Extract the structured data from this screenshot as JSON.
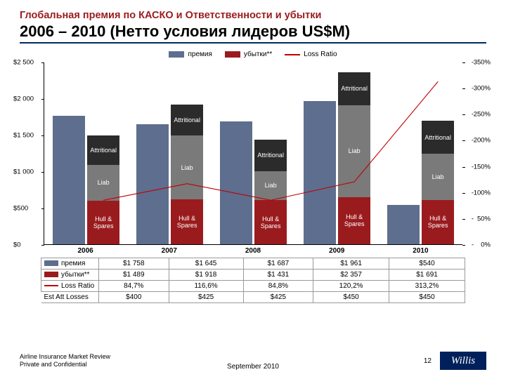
{
  "title": {
    "sub": "Глобальная премия по КАСКО и Ответственности и убытки",
    "main": "2006 – 2010 (Нетто условия лидеров US$M)",
    "sub_color": "#9a1b1e"
  },
  "legend": {
    "premium": "премия",
    "losses": "убытки**",
    "lossratio": "Loss Ratio"
  },
  "colors": {
    "premium": "#5e6e8e",
    "loss_hull": "#9a1b1e",
    "loss_liab": "#7a7a7a",
    "loss_attr": "#2b2b2b",
    "line": "#c00000",
    "title_bar": "#002b5c",
    "logo_bg": "#00205b"
  },
  "chart": {
    "ylim_left": [
      0,
      2500
    ],
    "ytick_left": 500,
    "ylim_right": [
      0,
      350
    ],
    "ytick_right": 50,
    "y_left_prefix": "$",
    "y_right_suffix": "%",
    "years": [
      "2006",
      "2007",
      "2008",
      "2009",
      "2010"
    ],
    "premium": [
      1758,
      1645,
      1687,
      1961,
      540
    ],
    "loss_total": [
      1489,
      1918,
      1431,
      2357,
      1691
    ],
    "loss_ratio": [
      84.7,
      116.6,
      84.8,
      120.2,
      313.2
    ],
    "loss_stack_labels": [
      "Hull &\nSpares",
      "Liab",
      "Attritional"
    ],
    "loss_stack": [
      [
        600,
        490,
        400
      ],
      [
        610,
        880,
        425
      ],
      [
        600,
        400,
        425
      ],
      [
        650,
        1260,
        450
      ],
      [
        610,
        630,
        450
      ]
    ],
    "seg_label_hull": "Hull & Spares",
    "seg_label_liab": "Liab",
    "seg_label_attr": "Attritional",
    "group_width_pct": 18,
    "bar_width_pct": 7.8,
    "bar_gap_pct": 0.5
  },
  "table": {
    "rows": [
      {
        "label": "премия",
        "swatch_type": "box",
        "swatch_color": "#5e6e8e",
        "cells": [
          "$1 758",
          "$1 645",
          "$1 687",
          "$1 961",
          "$540"
        ]
      },
      {
        "label": "убытки**",
        "swatch_type": "box",
        "swatch_color": "#9a1b1e",
        "cells": [
          "$1 489",
          "$1 918",
          "$1 431",
          "$2 357",
          "$1 691"
        ]
      },
      {
        "label": "Loss Ratio",
        "swatch_type": "line",
        "swatch_color": "#c00000",
        "cells": [
          "84,7%",
          "116,6%",
          "84,8%",
          "120,2%",
          "313,2%"
        ]
      },
      {
        "label": "Est Att Losses",
        "swatch_type": "none",
        "swatch_color": "",
        "cells": [
          "$400",
          "$425",
          "$425",
          "$450",
          "$450"
        ]
      }
    ]
  },
  "footer": {
    "line1": "Airline Insurance Market Review",
    "line2": "Private and Confidential",
    "center": "September 2010",
    "page": "12",
    "logo": "Willis"
  }
}
